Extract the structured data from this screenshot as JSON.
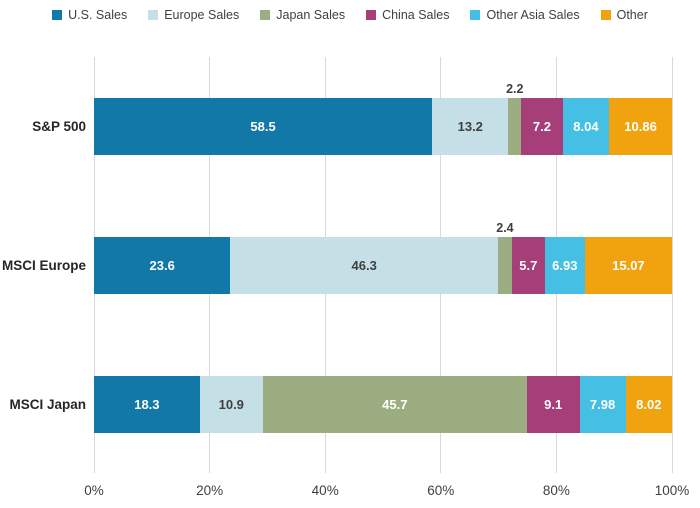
{
  "chart_data": {
    "type": "bar",
    "orientation": "horizontal",
    "stacked": true,
    "title": "",
    "xlabel": "",
    "ylabel": "",
    "xlim": [
      0,
      100
    ],
    "grid": true,
    "legend_position": "top",
    "categories": [
      "S&P 500",
      "MSCI Europe",
      "MSCI Japan"
    ],
    "series": [
      {
        "name": "U.S. Sales",
        "color": "#1178a8",
        "label_color": "#ffffff",
        "values": [
          58.5,
          23.6,
          18.3
        ]
      },
      {
        "name": "Europe Sales",
        "color": "#c5dfe6",
        "label_color": "#3f3f3f",
        "values": [
          13.2,
          46.3,
          10.9
        ]
      },
      {
        "name": "Japan Sales",
        "color": "#9cad82",
        "label_color": "#ffffff",
        "values": [
          2.2,
          2.4,
          45.7
        ]
      },
      {
        "name": "China Sales",
        "color": "#a53e79",
        "label_color": "#ffffff",
        "values": [
          7.2,
          5.7,
          9.1
        ]
      },
      {
        "name": "Other Asia Sales",
        "color": "#45bfe3",
        "label_color": "#ffffff",
        "values": [
          8.04,
          6.93,
          7.98
        ]
      },
      {
        "name": "Other",
        "color": "#f0a30e",
        "label_color": "#ffffff",
        "values": [
          10.86,
          15.07,
          8.02
        ]
      }
    ],
    "x_ticks": [
      "0%",
      "20%",
      "40%",
      "60%",
      "80%",
      "100%"
    ],
    "x_tick_values": [
      0,
      20,
      40,
      60,
      80,
      100
    ]
  },
  "style_meta": {
    "grid_color": "#d9d9d9",
    "axis_text_color": "#404040",
    "legend_text_color": "#3f3f3f",
    "small_label_threshold_pct": 4
  }
}
